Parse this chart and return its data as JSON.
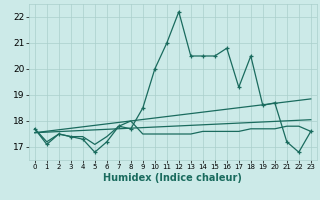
{
  "title": "",
  "xlabel": "Humidex (Indice chaleur)",
  "background_color": "#cceae8",
  "grid_color": "#aacfcc",
  "line_color": "#1a6b5e",
  "xlim": [
    -0.5,
    23.5
  ],
  "ylim": [
    16.5,
    22.5
  ],
  "yticks": [
    17,
    18,
    19,
    20,
    21,
    22
  ],
  "xticks": [
    0,
    1,
    2,
    3,
    4,
    5,
    6,
    7,
    8,
    9,
    10,
    11,
    12,
    13,
    14,
    15,
    16,
    17,
    18,
    19,
    20,
    21,
    22,
    23
  ],
  "main_x": [
    0,
    1,
    2,
    3,
    4,
    5,
    6,
    7,
    8,
    9,
    10,
    11,
    12,
    13,
    14,
    15,
    16,
    17,
    18,
    19,
    20,
    21,
    22,
    23
  ],
  "main_y": [
    17.7,
    17.1,
    17.5,
    17.4,
    17.3,
    16.8,
    17.2,
    17.8,
    17.7,
    18.5,
    20.0,
    21.0,
    22.2,
    20.5,
    20.5,
    20.5,
    20.8,
    19.3,
    20.5,
    18.6,
    18.7,
    17.2,
    16.8,
    17.6
  ],
  "line2_x": [
    0,
    1,
    2,
    3,
    4,
    5,
    6,
    7,
    8,
    9,
    10,
    11,
    12,
    13,
    14,
    15,
    16,
    17,
    18,
    19,
    20,
    21,
    22,
    23
  ],
  "line2_y": [
    17.7,
    17.2,
    17.5,
    17.4,
    17.4,
    17.1,
    17.4,
    17.8,
    18.0,
    17.5,
    17.5,
    17.5,
    17.5,
    17.5,
    17.6,
    17.6,
    17.6,
    17.6,
    17.7,
    17.7,
    17.7,
    17.8,
    17.8,
    17.6
  ],
  "trend_x": [
    0,
    23
  ],
  "trend_y": [
    17.55,
    18.85
  ],
  "trend2_x": [
    0,
    23
  ],
  "trend2_y": [
    17.55,
    18.05
  ]
}
